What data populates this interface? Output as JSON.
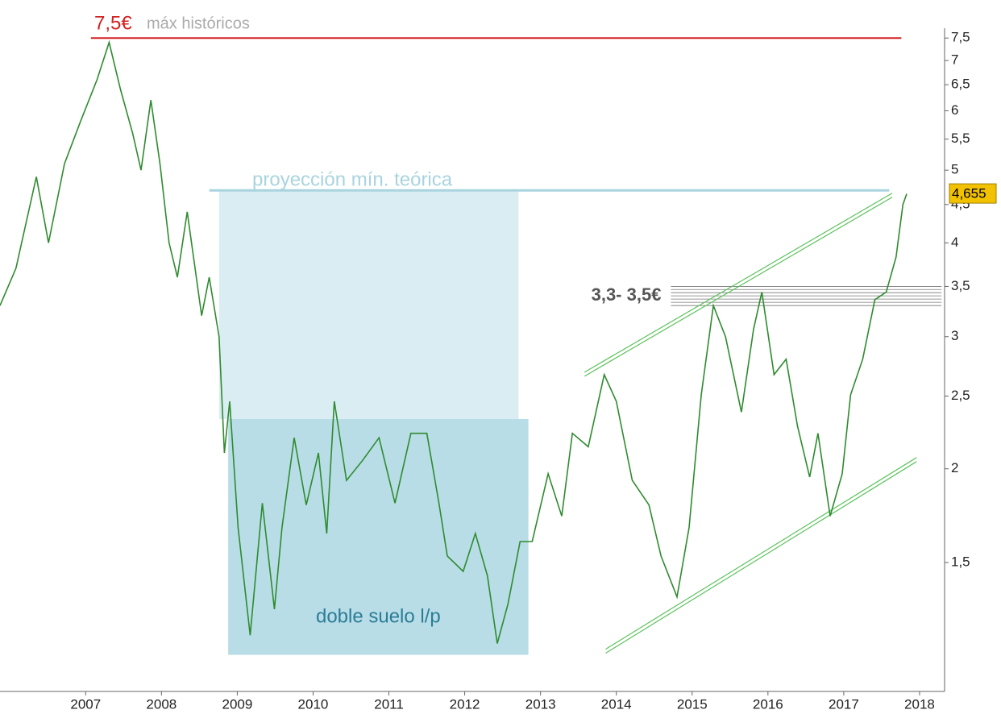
{
  "chart_data": {
    "type": "line",
    "x": [
      2005.87,
      2006.08,
      2006.35,
      2006.51,
      2006.72,
      2006.93,
      2007.15,
      2007.31,
      2007.46,
      2007.62,
      2007.73,
      2007.86,
      2007.98,
      2008.1,
      2008.21,
      2008.34,
      2008.53,
      2008.63,
      2008.76,
      2008.83,
      2008.9,
      2009.01,
      2009.17,
      2009.33,
      2009.49,
      2009.59,
      2009.75,
      2009.91,
      2010.07,
      2010.18,
      2010.28,
      2010.44,
      2010.65,
      2010.87,
      2011.08,
      2011.29,
      2011.5,
      2011.66,
      2011.77,
      2011.98,
      2012.14,
      2012.3,
      2012.43,
      2012.57,
      2012.73,
      2012.89,
      2013.1,
      2013.28,
      2013.42,
      2013.63,
      2013.84,
      2014.0,
      2014.21,
      2014.43,
      2014.59,
      2014.8,
      2014.96,
      2015.12,
      2015.28,
      2015.44,
      2015.65,
      2015.81,
      2015.92,
      2016.08,
      2016.24,
      2016.39,
      2016.55,
      2016.66,
      2016.82,
      2016.98,
      2017.09,
      2017.25,
      2017.41,
      2017.56,
      2017.69,
      2017.78,
      2017.83
    ],
    "values": [
      3.3,
      3.7,
      4.9,
      4.0,
      5.1,
      5.8,
      6.6,
      7.4,
      6.4,
      5.6,
      5.0,
      6.2,
      5.1,
      4.0,
      3.6,
      4.4,
      3.2,
      3.6,
      3.0,
      2.1,
      2.46,
      1.67,
      1.2,
      1.8,
      1.3,
      1.67,
      2.2,
      1.79,
      2.1,
      1.64,
      2.46,
      1.93,
      2.05,
      2.2,
      1.8,
      2.23,
      2.23,
      1.8,
      1.53,
      1.46,
      1.64,
      1.44,
      1.17,
      1.32,
      1.6,
      1.6,
      1.97,
      1.73,
      2.23,
      2.14,
      2.67,
      2.46,
      1.93,
      1.79,
      1.53,
      1.35,
      1.67,
      2.51,
      3.3,
      3.0,
      2.38,
      3.07,
      3.44,
      2.67,
      2.8,
      2.28,
      1.95,
      2.23,
      1.73,
      1.97,
      2.51,
      2.8,
      3.36,
      3.44,
      3.83,
      4.5,
      4.65
    ],
    "color": "#2e8b2e",
    "log_scale": true,
    "xlim": [
      2005.87,
      2018.33
    ],
    "xticks": [
      2007,
      2008,
      2009,
      2010,
      2011,
      2012,
      2013,
      2014,
      2015,
      2016,
      2017,
      2018
    ],
    "ylim": [
      1.01,
      7.73
    ],
    "yticks": [
      {
        "value": 1.5,
        "label": "1,5"
      },
      2,
      {
        "value": 2.5,
        "label": "2,5"
      },
      3,
      {
        "value": 3.5,
        "label": "3,5"
      },
      4,
      {
        "value": 4.5,
        "label": "4,5"
      },
      5,
      {
        "value": 5.5,
        "label": "5,5"
      },
      6,
      {
        "value": 6.5,
        "label": "6,5"
      },
      7,
      {
        "value": 7.5,
        "label": "7,5"
      }
    ],
    "high_line": {
      "value": 7.5,
      "label": "7,5€",
      "text": "máx históricos",
      "x": [
        2007.07,
        2017.76
      ],
      "color": "#d42020"
    },
    "projection_line": {
      "value": 4.7,
      "label": "proyección mín. teórica",
      "x": [
        2008.63,
        2017.6
      ],
      "color": "#a9d4df"
    },
    "projection_box": {
      "top": 4.7,
      "bottom": 2.33,
      "x": [
        2008.76,
        2012.71
      ],
      "color": "#daedf3"
    },
    "double_bottom_box": {
      "top": 2.33,
      "bottom": 1.13,
      "x": [
        2008.88,
        2012.84
      ],
      "color": "#b8dde7",
      "label": "doble suelo l/p"
    },
    "support_zone": {
      "low": 3.3,
      "high": 3.5,
      "x": [
        2014.72,
        2018.29
      ],
      "label": "3,3- 3,5€"
    },
    "channel_upper": {
      "x": [
        2013.58,
        2017.64
      ],
      "y": [
        2.69,
        4.66
      ]
    },
    "channel_lower": {
      "x": [
        2013.86,
        2017.96
      ],
      "y": [
        1.15,
        2.07
      ]
    },
    "last_price": {
      "value": 4.655,
      "label": "4,655"
    }
  }
}
